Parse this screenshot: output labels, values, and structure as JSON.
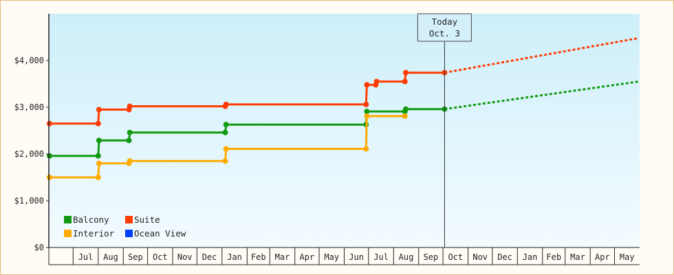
{
  "chart_data": {
    "type": "line",
    "x_unit": "month",
    "y_unit": "USD",
    "ylim": [
      0,
      5000
    ],
    "y_ticks": [
      {
        "value": 0,
        "label": "$0"
      },
      {
        "value": 1000,
        "label": "$1,000"
      },
      {
        "value": 2000,
        "label": "$2,000"
      },
      {
        "value": 3000,
        "label": "$3,000"
      },
      {
        "value": 4000,
        "label": "$4,000"
      }
    ],
    "xlim": [
      "2016-06-01",
      "2018-05-31"
    ],
    "x_ticks": [
      {
        "date": "2016-07-01",
        "label": "Jul"
      },
      {
        "date": "2016-08-01",
        "label": "Aug"
      },
      {
        "date": "2016-09-01",
        "label": "Sep"
      },
      {
        "date": "2016-10-01",
        "label": "Oct"
      },
      {
        "date": "2016-11-01",
        "label": "Nov"
      },
      {
        "date": "2016-12-01",
        "label": "Dec"
      },
      {
        "date": "2017-01-01",
        "label": "Jan"
      },
      {
        "date": "2017-02-01",
        "label": "Feb"
      },
      {
        "date": "2017-03-01",
        "label": "Mar"
      },
      {
        "date": "2017-04-01",
        "label": "Apr"
      },
      {
        "date": "2017-05-01",
        "label": "May"
      },
      {
        "date": "2017-06-01",
        "label": "Jun"
      },
      {
        "date": "2017-07-01",
        "label": "Jul"
      },
      {
        "date": "2017-08-01",
        "label": "Aug"
      },
      {
        "date": "2017-09-01",
        "label": "Sep"
      },
      {
        "date": "2017-10-01",
        "label": "Oct"
      },
      {
        "date": "2017-11-01",
        "label": "Nov"
      },
      {
        "date": "2017-12-01",
        "label": "Dec"
      },
      {
        "date": "2018-01-01",
        "label": "Jan"
      },
      {
        "date": "2018-02-01",
        "label": "Feb"
      },
      {
        "date": "2018-03-01",
        "label": "Mar"
      },
      {
        "date": "2018-04-01",
        "label": "Apr"
      },
      {
        "date": "2018-05-01",
        "label": "May"
      }
    ],
    "today": {
      "date": "2017-10-03",
      "line1": "Today",
      "line2": "Oct. 3"
    },
    "legend_position": "bottom-left",
    "legend": [
      {
        "name": "Balcony",
        "color": "#119911"
      },
      {
        "name": "Suite",
        "color": "#ff3c00"
      },
      {
        "name": "Interior",
        "color": "#ffaa00"
      },
      {
        "name": "Ocean View",
        "color": "#0040ff"
      }
    ],
    "series": [
      {
        "name": "Suite",
        "color": "#ff3c00",
        "points": [
          {
            "date": "2016-06-01",
            "value": 2650
          },
          {
            "date": "2016-08-01",
            "value": 2650
          },
          {
            "date": "2016-08-02",
            "value": 2950
          },
          {
            "date": "2016-09-08",
            "value": 2950
          },
          {
            "date": "2016-09-09",
            "value": 3020
          },
          {
            "date": "2017-01-05",
            "value": 3020
          },
          {
            "date": "2017-01-06",
            "value": 3060
          },
          {
            "date": "2017-06-28",
            "value": 3060
          },
          {
            "date": "2017-06-29",
            "value": 3480
          },
          {
            "date": "2017-07-10",
            "value": 3480
          },
          {
            "date": "2017-07-11",
            "value": 3550
          },
          {
            "date": "2017-08-15",
            "value": 3550
          },
          {
            "date": "2017-08-16",
            "value": 3740
          },
          {
            "date": "2017-10-03",
            "value": 3740
          }
        ],
        "projection": [
          {
            "date": "2017-10-03",
            "value": 3740
          },
          {
            "date": "2018-05-31",
            "value": 4480
          }
        ]
      },
      {
        "name": "Balcony",
        "color": "#119911",
        "points": [
          {
            "date": "2016-06-01",
            "value": 1960
          },
          {
            "date": "2016-08-01",
            "value": 1960
          },
          {
            "date": "2016-08-02",
            "value": 2290
          },
          {
            "date": "2016-09-08",
            "value": 2290
          },
          {
            "date": "2016-09-09",
            "value": 2460
          },
          {
            "date": "2017-01-05",
            "value": 2460
          },
          {
            "date": "2017-01-06",
            "value": 2630
          },
          {
            "date": "2017-06-28",
            "value": 2630
          },
          {
            "date": "2017-06-29",
            "value": 2910
          },
          {
            "date": "2017-08-15",
            "value": 2910
          },
          {
            "date": "2017-08-16",
            "value": 2960
          },
          {
            "date": "2017-10-03",
            "value": 2960
          }
        ],
        "projection": [
          {
            "date": "2017-10-03",
            "value": 2960
          },
          {
            "date": "2018-05-31",
            "value": 3550
          }
        ]
      },
      {
        "name": "Interior",
        "color": "#ffaa00",
        "points": [
          {
            "date": "2016-06-01",
            "value": 1500
          },
          {
            "date": "2016-08-01",
            "value": 1500
          },
          {
            "date": "2016-08-02",
            "value": 1800
          },
          {
            "date": "2016-09-08",
            "value": 1800
          },
          {
            "date": "2016-09-09",
            "value": 1850
          },
          {
            "date": "2017-01-05",
            "value": 1850
          },
          {
            "date": "2017-01-06",
            "value": 2110
          },
          {
            "date": "2017-06-28",
            "value": 2110
          },
          {
            "date": "2017-06-29",
            "value": 2810
          },
          {
            "date": "2017-08-15",
            "value": 2810
          }
        ]
      }
    ]
  }
}
